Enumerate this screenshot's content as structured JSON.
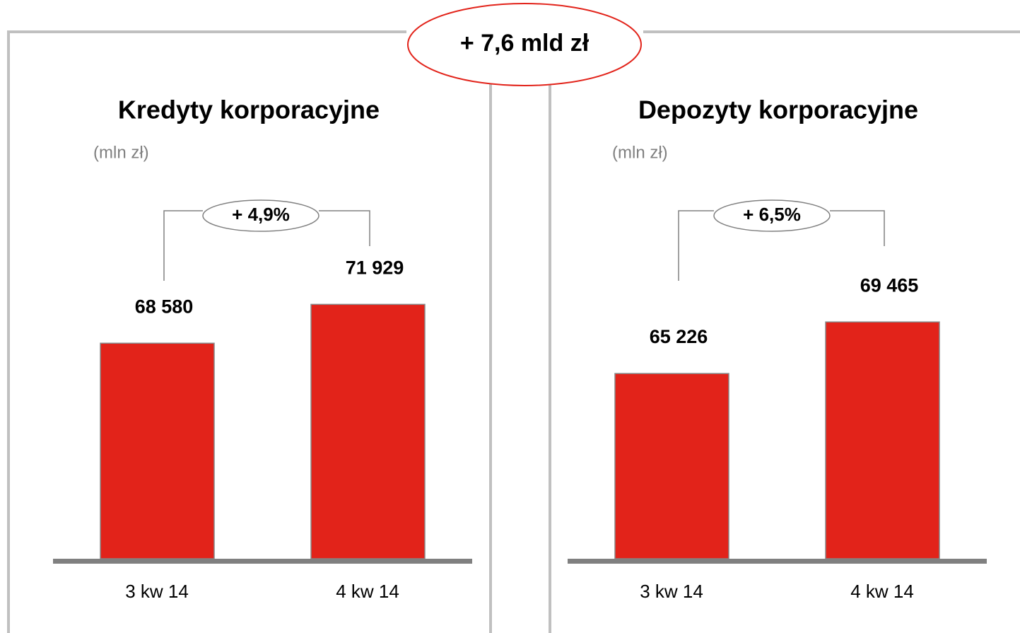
{
  "annotation": "+ 7,6 mld zł",
  "chart_data": [
    {
      "type": "bar",
      "title": "Kredyty korporacyjne",
      "subtitle": "(mln zł)",
      "categories": [
        "3 kw 14",
        "4 kw 14"
      ],
      "values": [
        68580,
        71929
      ],
      "value_labels": [
        "68 580",
        "71 929"
      ],
      "color": "#e2231a",
      "ylim": [
        50000,
        75000
      ],
      "annotation": "+ 4,9%"
    },
    {
      "type": "bar",
      "title": "Depozyty korporacyjne",
      "subtitle": "(mln zł)",
      "categories": [
        "3 kw 14",
        "4 kw 14"
      ],
      "values": [
        65226,
        69465
      ],
      "value_labels": [
        "65 226",
        "69 465"
      ],
      "color": "#e2231a",
      "ylim": [
        50000,
        75000
      ],
      "annotation": "+ 6,5%"
    }
  ]
}
